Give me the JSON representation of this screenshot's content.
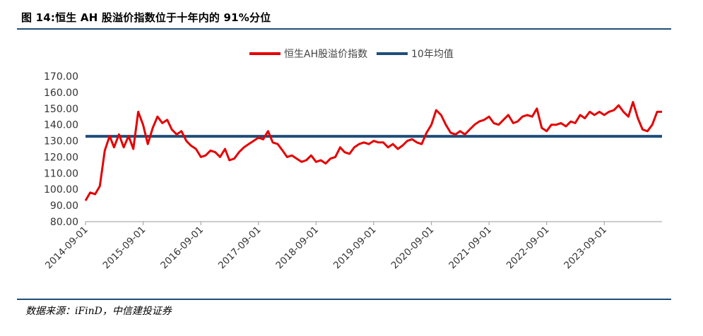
{
  "figure": {
    "title": "图  14:恒生 AH 股溢价指数位于十年内的 91%分位",
    "source": "数据来源：iFinD，中信建投证券"
  },
  "colors": {
    "series_main": "#e50000",
    "series_avg": "#1f4e79",
    "rule": "#1f4e79"
  },
  "chart_data": {
    "type": "line",
    "title": "",
    "xlabel": "",
    "ylabel": "",
    "ylim": [
      80,
      170
    ],
    "yticks": [
      "170.00",
      "160.00",
      "150.00",
      "140.00",
      "130.00",
      "120.00",
      "110.00",
      "100.00",
      "90.00",
      "80.00"
    ],
    "xticks": [
      "2014-09-01",
      "2015-09-01",
      "2016-09-01",
      "2017-09-01",
      "2018-09-01",
      "2019-09-01",
      "2020-09-01",
      "2021-09-01",
      "2022-09-01",
      "2023-09-01"
    ],
    "xrange": [
      "2014-09-01",
      "2024-09-01"
    ],
    "grid": false,
    "legend": "top-center",
    "series": [
      {
        "name": "恒生AH股溢价指数",
        "x": [
          "2014-09-01",
          "2014-10-01",
          "2014-11-01",
          "2014-12-01",
          "2015-01-01",
          "2015-02-01",
          "2015-03-01",
          "2015-04-01",
          "2015-05-01",
          "2015-06-01",
          "2015-07-01",
          "2015-08-01",
          "2015-09-01",
          "2015-10-01",
          "2015-11-01",
          "2015-12-01",
          "2016-01-01",
          "2016-02-01",
          "2016-03-01",
          "2016-04-01",
          "2016-05-01",
          "2016-06-01",
          "2016-07-01",
          "2016-08-01",
          "2016-09-01",
          "2016-10-01",
          "2016-11-01",
          "2016-12-01",
          "2017-01-01",
          "2017-02-01",
          "2017-03-01",
          "2017-04-01",
          "2017-05-01",
          "2017-06-01",
          "2017-07-01",
          "2017-08-01",
          "2017-09-01",
          "2017-10-01",
          "2017-11-01",
          "2017-12-01",
          "2018-01-01",
          "2018-02-01",
          "2018-03-01",
          "2018-04-01",
          "2018-05-01",
          "2018-06-01",
          "2018-07-01",
          "2018-08-01",
          "2018-09-01",
          "2018-10-01",
          "2018-11-01",
          "2018-12-01",
          "2019-01-01",
          "2019-02-01",
          "2019-03-01",
          "2019-04-01",
          "2019-05-01",
          "2019-06-01",
          "2019-07-01",
          "2019-08-01",
          "2019-09-01",
          "2019-10-01",
          "2019-11-01",
          "2019-12-01",
          "2020-01-01",
          "2020-02-01",
          "2020-03-01",
          "2020-04-01",
          "2020-05-01",
          "2020-06-01",
          "2020-07-01",
          "2020-08-01",
          "2020-09-01",
          "2020-10-01",
          "2020-11-01",
          "2020-12-01",
          "2021-01-01",
          "2021-02-01",
          "2021-03-01",
          "2021-04-01",
          "2021-05-01",
          "2021-06-01",
          "2021-07-01",
          "2021-08-01",
          "2021-09-01",
          "2021-10-01",
          "2021-11-01",
          "2021-12-01",
          "2022-01-01",
          "2022-02-01",
          "2022-03-01",
          "2022-04-01",
          "2022-05-01",
          "2022-06-01",
          "2022-07-01",
          "2022-08-01",
          "2022-09-01",
          "2022-10-01",
          "2022-11-01",
          "2022-12-01",
          "2023-01-01",
          "2023-02-01",
          "2023-03-01",
          "2023-04-01",
          "2023-05-01",
          "2023-06-01",
          "2023-07-01",
          "2023-08-01",
          "2023-09-01",
          "2023-10-01",
          "2023-11-01",
          "2023-12-01",
          "2024-01-01",
          "2024-02-01",
          "2024-03-01",
          "2024-04-01",
          "2024-05-01",
          "2024-06-01",
          "2024-07-01",
          "2024-08-01",
          "2024-09-01"
        ],
        "values": [
          93,
          98,
          97,
          102,
          124,
          133,
          126,
          134,
          126,
          133,
          125,
          148,
          140,
          128,
          138,
          145,
          141,
          143,
          137,
          134,
          136,
          130,
          127,
          125,
          120,
          121,
          124,
          123,
          120,
          125,
          118,
          119,
          123,
          126,
          128,
          130,
          132,
          131,
          136,
          129,
          128,
          124,
          120,
          121,
          119,
          117,
          118,
          121,
          117,
          118,
          116,
          119,
          120,
          126,
          123,
          122,
          126,
          128,
          129,
          128,
          130,
          129,
          129,
          126,
          128,
          125,
          127,
          130,
          131,
          129,
          128,
          135,
          140,
          149,
          146,
          140,
          135,
          134,
          136,
          134,
          137,
          140,
          142,
          143,
          145,
          141,
          140,
          143,
          146,
          141,
          142,
          145,
          146,
          145,
          150,
          138,
          136,
          140,
          140,
          141,
          139,
          142,
          141,
          146,
          144,
          148,
          146,
          148,
          146,
          148,
          149,
          152,
          148,
          145,
          154,
          144,
          137,
          136,
          140,
          148,
          148
        ]
      },
      {
        "name": "10年均值",
        "x": [
          "2014-09-01",
          "2024-09-01"
        ],
        "values": [
          132.8,
          132.8
        ]
      }
    ]
  }
}
